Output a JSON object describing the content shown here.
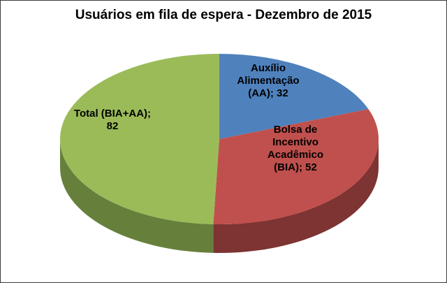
{
  "title": "Usuários em fila de espera - Dezembro de 2015",
  "chart_data": {
    "type": "pie",
    "is_3d": true,
    "title": "Usuários em fila de espera - Dezembro de 2015",
    "categories": [
      "Auxílio Alimentação (AA)",
      "Bolsa de Incentivo Acadêmico (BIA)",
      "Total (BIA+AA)"
    ],
    "values": [
      32,
      52,
      82
    ],
    "total": 166,
    "colors": [
      "#4F81BD",
      "#C0504D",
      "#9BBB59"
    ],
    "side_colors": [
      "#2F5273",
      "#7D3432",
      "#66803B"
    ],
    "start_angle_deg": -90,
    "direction": "clockwise",
    "legend_position": "none",
    "labels": [
      {
        "text": "Auxílio\nAlimentação\n(AA); 32"
      },
      {
        "text": "Bolsa de\nIncentivo\nAcadêmico\n(BIA); 52"
      },
      {
        "text": "Total (BIA+AA);\n82"
      }
    ]
  }
}
